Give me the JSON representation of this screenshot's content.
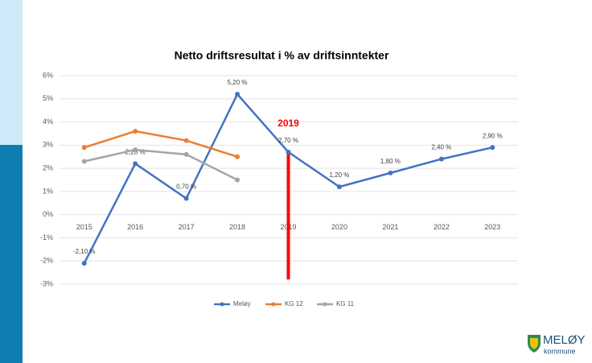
{
  "chart_data": {
    "type": "line",
    "title": "Netto driftsresultat  i % av driftsinntekter",
    "categories": [
      "2015",
      "2016",
      "2017",
      "2018",
      "2019",
      "2020",
      "2021",
      "2022",
      "2023"
    ],
    "series": [
      {
        "name": "Meløy",
        "color": "#4472c4",
        "values": [
          -2.1,
          2.2,
          0.7,
          5.2,
          2.7,
          1.2,
          1.8,
          2.4,
          2.9
        ],
        "value_labels": [
          "-2,10 %",
          "2,20 %",
          "0,70 %",
          "5,20 %",
          "2,70 %",
          "1,20 %",
          "1,80 %",
          "2,40 %",
          "2,90 %"
        ]
      },
      {
        "name": "KG 12",
        "color": "#ed7d31",
        "values": [
          2.9,
          3.6,
          3.2,
          2.5,
          null,
          null,
          null,
          null,
          null
        ]
      },
      {
        "name": "KG 11",
        "color": "#a5a5a5",
        "values": [
          2.3,
          2.8,
          2.6,
          1.5,
          null,
          null,
          null,
          null,
          null
        ]
      }
    ],
    "ylim": [
      -3,
      6
    ],
    "yticks": [
      {
        "value": -3,
        "label": "-3%"
      },
      {
        "value": -2,
        "label": "-2%"
      },
      {
        "value": -1,
        "label": "-1%"
      },
      {
        "value": 0,
        "label": "0%"
      },
      {
        "value": 1,
        "label": "1%"
      },
      {
        "value": 2,
        "label": "2%"
      },
      {
        "value": 3,
        "label": "3%"
      },
      {
        "value": 4,
        "label": "4%"
      },
      {
        "value": 5,
        "label": "5%"
      },
      {
        "value": 6,
        "label": "6%"
      }
    ],
    "grid": true,
    "legend": "bottom",
    "annotation": {
      "text": "2019",
      "color": "#ff0000",
      "at": "2019",
      "from": 2.7,
      "to": -2.8
    },
    "logo": {
      "name": "MELØY",
      "sub": "kommune"
    }
  }
}
